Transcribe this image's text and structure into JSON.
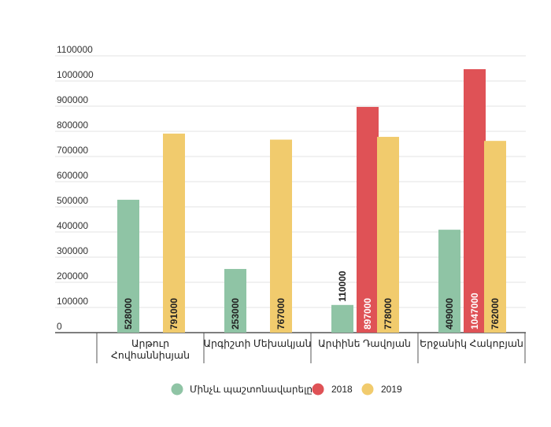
{
  "chart_data": {
    "type": "bar",
    "title": "",
    "xlabel": "",
    "ylabel": "",
    "ylim": [
      0,
      1100000
    ],
    "yticks": [
      0,
      100000,
      200000,
      300000,
      400000,
      500000,
      600000,
      700000,
      800000,
      900000,
      1000000,
      1100000
    ],
    "categories": [
      [
        "Արթուր",
        "Հովհաննիսյան"
      ],
      [
        "Արգիշտի Մեխակյան"
      ],
      [
        "Արփինե Դավոյան"
      ],
      [
        "Երջանիկ Հակոբյան"
      ]
    ],
    "series": [
      {
        "name": "Մինչև պաշտոնավարելը",
        "color": "#8fc4a5",
        "values": [
          528000,
          253000,
          110000,
          409000
        ]
      },
      {
        "name": "2018",
        "color": "#df5256",
        "values": [
          null,
          null,
          897000,
          1047000
        ]
      },
      {
        "name": "2019",
        "color": "#f1cb6d",
        "values": [
          791000,
          767000,
          778000,
          762000
        ]
      }
    ],
    "grid": true,
    "legend": "bottom"
  }
}
